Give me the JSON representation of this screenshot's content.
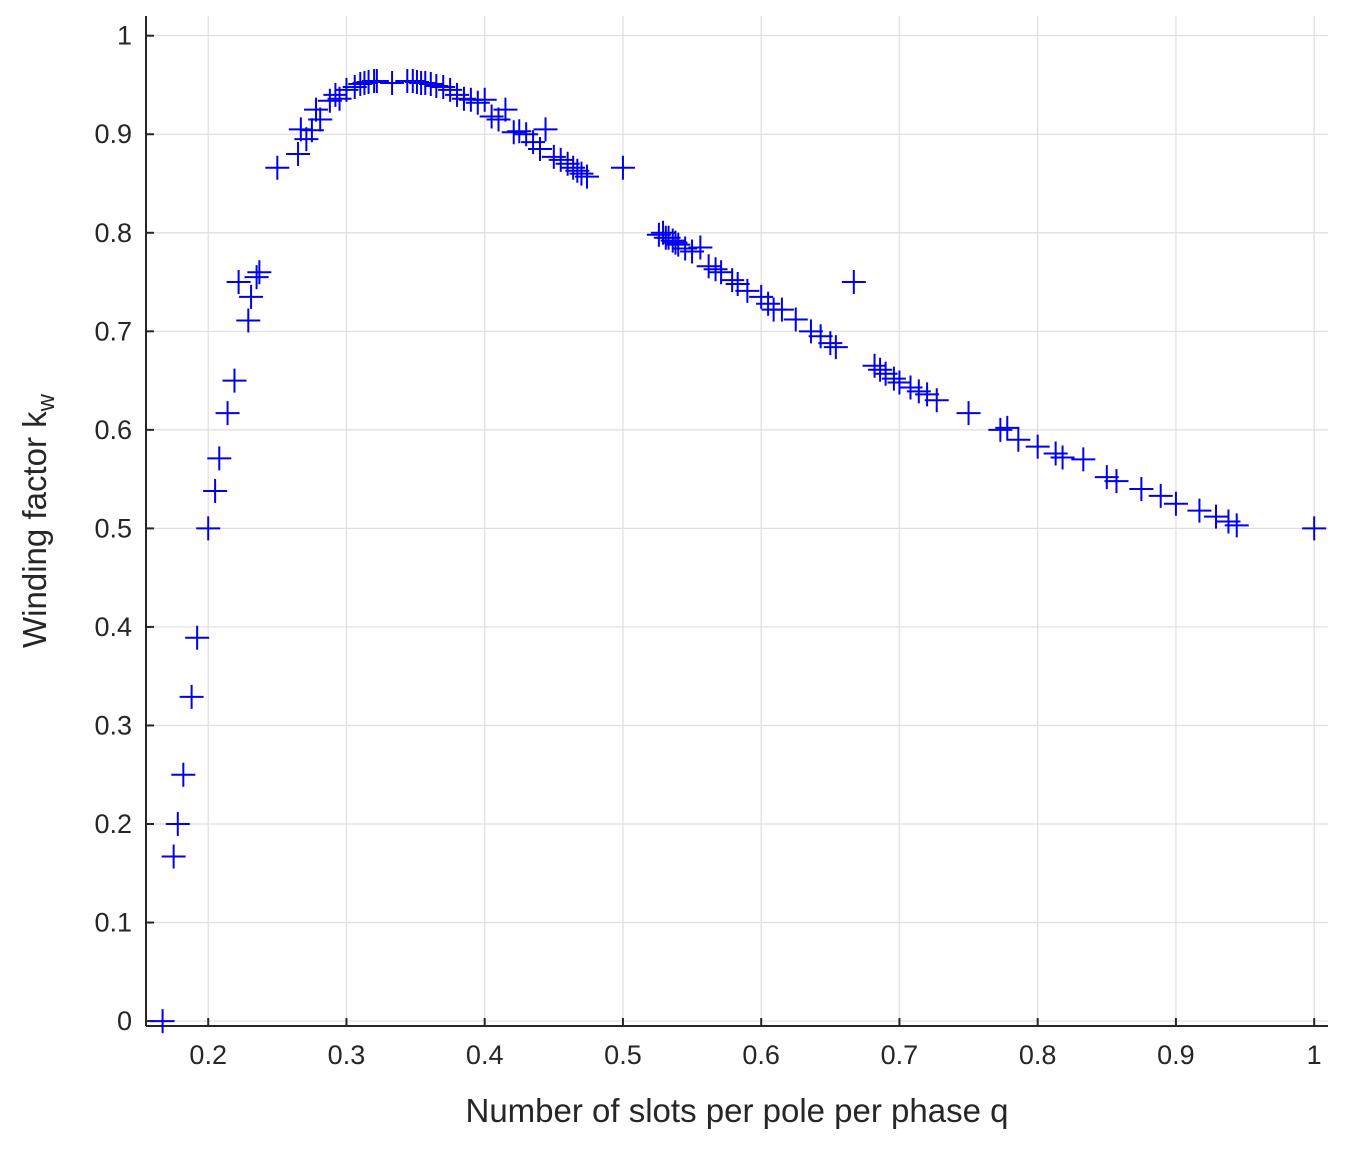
{
  "chart_data": {
    "type": "scatter",
    "marker": "plus",
    "marker_color": "#0000EE",
    "grid": true,
    "title": "",
    "xlabel": "Number of slots per pole per phase q",
    "ylabel_main": "Winding factor k",
    "ylabel_sub": "w",
    "xlim": [
      0.155,
      1.01
    ],
    "ylim": [
      -0.005,
      1.02
    ],
    "xticks": [
      0.2,
      0.3,
      0.4,
      0.5,
      0.6,
      0.7,
      0.8,
      0.9,
      1
    ],
    "xtick_labels": [
      "0.2",
      "0.3",
      "0.4",
      "0.5",
      "0.6",
      "0.7",
      "0.8",
      "0.9",
      "1"
    ],
    "yticks": [
      0,
      0.1,
      0.2,
      0.3,
      0.4,
      0.5,
      0.6,
      0.7,
      0.8,
      0.9,
      1
    ],
    "ytick_labels": [
      "0",
      "0.1",
      "0.2",
      "0.3",
      "0.4",
      "0.5",
      "0.6",
      "0.7",
      "0.8",
      "0.9",
      "1"
    ],
    "points": [
      [
        0.167,
        0.0
      ],
      [
        0.175,
        0.167
      ],
      [
        0.178,
        0.2
      ],
      [
        0.182,
        0.25
      ],
      [
        0.188,
        0.329
      ],
      [
        0.192,
        0.389
      ],
      [
        0.2,
        0.5
      ],
      [
        0.205,
        0.538
      ],
      [
        0.208,
        0.571
      ],
      [
        0.214,
        0.617
      ],
      [
        0.219,
        0.65
      ],
      [
        0.222,
        0.75
      ],
      [
        0.229,
        0.711
      ],
      [
        0.231,
        0.735
      ],
      [
        0.235,
        0.755
      ],
      [
        0.237,
        0.76
      ],
      [
        0.25,
        0.866
      ],
      [
        0.265,
        0.88
      ],
      [
        0.267,
        0.905
      ],
      [
        0.271,
        0.895
      ],
      [
        0.275,
        0.904
      ],
      [
        0.278,
        0.925
      ],
      [
        0.281,
        0.915
      ],
      [
        0.288,
        0.934
      ],
      [
        0.292,
        0.94
      ],
      [
        0.295,
        0.936
      ],
      [
        0.3,
        0.945
      ],
      [
        0.306,
        0.948
      ],
      [
        0.31,
        0.951
      ],
      [
        0.313,
        0.952
      ],
      [
        0.316,
        0.953
      ],
      [
        0.32,
        0.954
      ],
      [
        0.322,
        0.954
      ],
      [
        0.333,
        0.952
      ],
      [
        0.344,
        0.954
      ],
      [
        0.348,
        0.954
      ],
      [
        0.351,
        0.953
      ],
      [
        0.354,
        0.952
      ],
      [
        0.357,
        0.952
      ],
      [
        0.361,
        0.951
      ],
      [
        0.365,
        0.949
      ],
      [
        0.37,
        0.948
      ],
      [
        0.375,
        0.945
      ],
      [
        0.38,
        0.94
      ],
      [
        0.385,
        0.936
      ],
      [
        0.39,
        0.935
      ],
      [
        0.395,
        0.932
      ],
      [
        0.4,
        0.935
      ],
      [
        0.405,
        0.918
      ],
      [
        0.41,
        0.915
      ],
      [
        0.415,
        0.925
      ],
      [
        0.421,
        0.902
      ],
      [
        0.425,
        0.903
      ],
      [
        0.43,
        0.9
      ],
      [
        0.435,
        0.892
      ],
      [
        0.44,
        0.885
      ],
      [
        0.444,
        0.905
      ],
      [
        0.45,
        0.877
      ],
      [
        0.455,
        0.874
      ],
      [
        0.46,
        0.87
      ],
      [
        0.464,
        0.866
      ],
      [
        0.467,
        0.863
      ],
      [
        0.47,
        0.86
      ],
      [
        0.474,
        0.857
      ],
      [
        0.5,
        0.866
      ],
      [
        0.526,
        0.798
      ],
      [
        0.529,
        0.8
      ],
      [
        0.531,
        0.795
      ],
      [
        0.533,
        0.795
      ],
      [
        0.536,
        0.792
      ],
      [
        0.538,
        0.79
      ],
      [
        0.54,
        0.788
      ],
      [
        0.545,
        0.784
      ],
      [
        0.55,
        0.781
      ],
      [
        0.556,
        0.785
      ],
      [
        0.562,
        0.766
      ],
      [
        0.567,
        0.763
      ],
      [
        0.571,
        0.76
      ],
      [
        0.579,
        0.752
      ],
      [
        0.583,
        0.748
      ],
      [
        0.59,
        0.741
      ],
      [
        0.6,
        0.735
      ],
      [
        0.605,
        0.728
      ],
      [
        0.609,
        0.722
      ],
      [
        0.615,
        0.722
      ],
      [
        0.625,
        0.712
      ],
      [
        0.636,
        0.7
      ],
      [
        0.643,
        0.695
      ],
      [
        0.65,
        0.688
      ],
      [
        0.654,
        0.684
      ],
      [
        0.667,
        0.75
      ],
      [
        0.682,
        0.665
      ],
      [
        0.686,
        0.661
      ],
      [
        0.69,
        0.657
      ],
      [
        0.696,
        0.652
      ],
      [
        0.7,
        0.648
      ],
      [
        0.708,
        0.643
      ],
      [
        0.714,
        0.639
      ],
      [
        0.72,
        0.636
      ],
      [
        0.727,
        0.63
      ],
      [
        0.75,
        0.617
      ],
      [
        0.773,
        0.6
      ],
      [
        0.778,
        0.602
      ],
      [
        0.786,
        0.59
      ],
      [
        0.8,
        0.583
      ],
      [
        0.813,
        0.576
      ],
      [
        0.818,
        0.572
      ],
      [
        0.833,
        0.57
      ],
      [
        0.85,
        0.552
      ],
      [
        0.857,
        0.548
      ],
      [
        0.875,
        0.54
      ],
      [
        0.889,
        0.533
      ],
      [
        0.9,
        0.525
      ],
      [
        0.917,
        0.518
      ],
      [
        0.929,
        0.512
      ],
      [
        0.938,
        0.507
      ],
      [
        0.944,
        0.503
      ],
      [
        1.0,
        0.5
      ]
    ]
  }
}
